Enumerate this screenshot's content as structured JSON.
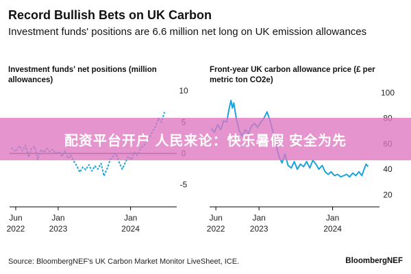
{
  "title": "Record Bullish Bets on UK Carbon",
  "subtitle": "Investment funds' positions are 6.6 million net long on UK emission allowances",
  "source": "Source: BloombergNEF's UK Carbon Market Monitor LiveSheet, ICE.",
  "brand": "BloombergNEF",
  "banner_text": "配资平台开户 人民来论：快乐暑假 安全为先",
  "colors": {
    "series": "#1aa3d9",
    "axis": "#000000",
    "banner": "#de76c0"
  },
  "chart_data": [
    {
      "type": "line",
      "title": "Investment funds' net positions (million allowances)",
      "x_tick_labels": [
        [
          "Jun",
          "2022"
        ],
        [
          "Jan",
          "2023"
        ],
        [
          "Jan",
          "2024"
        ]
      ],
      "x_tick_dates": [
        "2022-06-01",
        "2023-01-01",
        "2024-01-01"
      ],
      "xlim": [
        "2022-05-01",
        "2024-07-31"
      ],
      "y_tick_labels": [
        "10",
        "5",
        "0",
        "-5"
      ],
      "y_ticks": [
        10,
        5,
        0,
        -5
      ],
      "ylim": [
        -7,
        10.5
      ],
      "zero_line": true,
      "series": [
        {
          "line_style": "dashed",
          "points": [
            [
              "2022-05-10",
              0.9
            ],
            [
              "2022-06-01",
              0.3
            ],
            [
              "2022-06-20",
              1.2
            ],
            [
              "2022-07-05",
              0.4
            ],
            [
              "2022-07-20",
              1.3
            ],
            [
              "2022-08-05",
              -0.6
            ],
            [
              "2022-08-20",
              0.8
            ],
            [
              "2022-09-05",
              1.1
            ],
            [
              "2022-09-20",
              -1.0
            ],
            [
              "2022-10-05",
              0.6
            ],
            [
              "2022-10-20",
              0.2
            ],
            [
              "2022-11-05",
              0.8
            ],
            [
              "2022-11-20",
              0.3
            ],
            [
              "2022-12-05",
              0.6
            ],
            [
              "2022-12-20",
              0.0
            ],
            [
              "2023-01-05",
              0.3
            ],
            [
              "2023-01-20",
              -0.5
            ],
            [
              "2023-02-05",
              0.4
            ],
            [
              "2023-02-20",
              -0.8
            ],
            [
              "2023-03-05",
              -0.3
            ],
            [
              "2023-03-20",
              -1.2
            ],
            [
              "2023-04-05",
              -2.0
            ],
            [
              "2023-04-20",
              -3.0
            ],
            [
              "2023-05-05",
              -2.2
            ],
            [
              "2023-05-20",
              -2.6
            ],
            [
              "2023-06-05",
              -1.8
            ],
            [
              "2023-06-20",
              -2.8
            ],
            [
              "2023-07-05",
              -2.0
            ],
            [
              "2023-07-20",
              -2.5
            ],
            [
              "2023-08-05",
              -1.6
            ],
            [
              "2023-08-20",
              -3.6
            ],
            [
              "2023-09-05",
              -2.4
            ],
            [
              "2023-09-20",
              -1.0
            ],
            [
              "2023-10-05",
              -0.5
            ],
            [
              "2023-10-20",
              0.0
            ],
            [
              "2023-11-05",
              -1.5
            ],
            [
              "2023-11-20",
              -2.5
            ],
            [
              "2023-12-05",
              -1.5
            ],
            [
              "2023-12-20",
              -0.5
            ],
            [
              "2024-01-05",
              -1.0
            ],
            [
              "2024-01-20",
              0.2
            ],
            [
              "2024-02-05",
              -0.3
            ],
            [
              "2024-02-20",
              0.8
            ],
            [
              "2024-03-05",
              1.2
            ],
            [
              "2024-03-20",
              1.8
            ],
            [
              "2024-04-05",
              2.5
            ],
            [
              "2024-04-20",
              3.5
            ],
            [
              "2024-05-05",
              4.2
            ],
            [
              "2024-05-20",
              5.6
            ],
            [
              "2024-06-05",
              5.0
            ],
            [
              "2024-06-20",
              6.6
            ]
          ]
        }
      ]
    },
    {
      "type": "line",
      "title": "Front-year UK carbon allowance price (£ per metric ton CO2e)",
      "x_tick_labels": [
        [
          "Jun",
          "2022"
        ],
        [
          "Jan",
          "2023"
        ],
        [
          "Jan",
          "2024"
        ]
      ],
      "x_tick_dates": [
        "2022-06-01",
        "2023-01-01",
        "2024-01-01"
      ],
      "xlim": [
        "2022-05-01",
        "2024-07-31"
      ],
      "y_tick_labels": [
        "100",
        "80",
        "60",
        "40",
        "20"
      ],
      "y_ticks": [
        100,
        80,
        60,
        40,
        20
      ],
      "ylim": [
        18,
        104
      ],
      "series": [
        {
          "line_style": "solid",
          "points": [
            [
              "2022-05-10",
              72
            ],
            [
              "2022-05-25",
              69
            ],
            [
              "2022-06-10",
              75
            ],
            [
              "2022-06-25",
              71
            ],
            [
              "2022-07-10",
              78
            ],
            [
              "2022-07-25",
              77
            ],
            [
              "2022-08-05",
              87
            ],
            [
              "2022-08-15",
              94
            ],
            [
              "2022-08-22",
              88
            ],
            [
              "2022-08-29",
              92
            ],
            [
              "2022-09-10",
              80
            ],
            [
              "2022-09-25",
              70
            ],
            [
              "2022-10-10",
              66
            ],
            [
              "2022-10-25",
              71
            ],
            [
              "2022-11-10",
              68
            ],
            [
              "2022-11-25",
              74
            ],
            [
              "2022-12-10",
              76
            ],
            [
              "2022-12-25",
              73
            ],
            [
              "2023-01-10",
              77
            ],
            [
              "2023-01-25",
              80
            ],
            [
              "2023-02-10",
              85
            ],
            [
              "2023-02-25",
              78
            ],
            [
              "2023-03-10",
              70
            ],
            [
              "2023-03-25",
              60
            ],
            [
              "2023-04-10",
              50
            ],
            [
              "2023-04-25",
              45
            ],
            [
              "2023-05-10",
              52
            ],
            [
              "2023-05-25",
              43
            ],
            [
              "2023-06-10",
              41
            ],
            [
              "2023-06-25",
              46
            ],
            [
              "2023-07-10",
              40
            ],
            [
              "2023-07-25",
              44
            ],
            [
              "2023-08-10",
              42
            ],
            [
              "2023-08-25",
              46
            ],
            [
              "2023-09-10",
              41
            ],
            [
              "2023-09-25",
              47
            ],
            [
              "2023-10-10",
              44
            ],
            [
              "2023-10-25",
              40
            ],
            [
              "2023-11-10",
              43
            ],
            [
              "2023-11-25",
              38
            ],
            [
              "2023-12-10",
              36
            ],
            [
              "2023-12-25",
              38
            ],
            [
              "2024-01-10",
              35
            ],
            [
              "2024-01-25",
              36
            ],
            [
              "2024-02-10",
              34
            ],
            [
              "2024-02-25",
              35
            ],
            [
              "2024-03-10",
              36
            ],
            [
              "2024-03-25",
              34
            ],
            [
              "2024-04-10",
              37
            ],
            [
              "2024-04-25",
              35
            ],
            [
              "2024-05-10",
              38
            ],
            [
              "2024-05-25",
              35
            ],
            [
              "2024-06-05",
              40
            ],
            [
              "2024-06-15",
              44
            ],
            [
              "2024-06-25",
              42
            ]
          ]
        }
      ]
    }
  ]
}
